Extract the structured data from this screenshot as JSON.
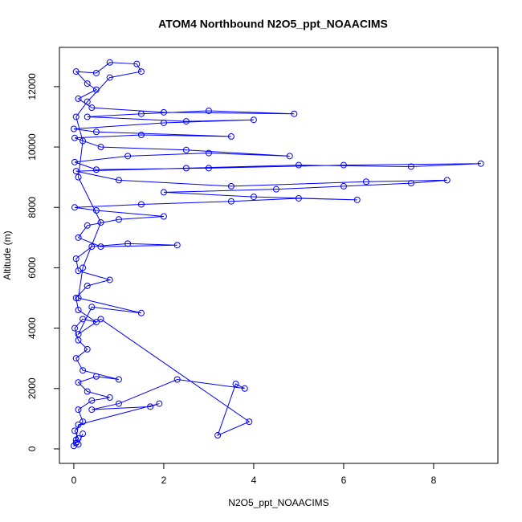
{
  "chart_data": {
    "type": "line",
    "markers": true,
    "title": "ATOM4 Northbound N2O5_ppt_NOAACIMS",
    "x_label": "N2O5_ppt_NOAACIMS",
    "y_label": "Altitude (m)",
    "color": "#0000ff",
    "xlim": [
      -0.32,
      9.43
    ],
    "ylim": [
      -480,
      13300
    ],
    "xticks": [
      0,
      2,
      4,
      6,
      8
    ],
    "yticks": [
      0,
      2000,
      4000,
      6000,
      8000,
      10000,
      12000
    ],
    "x": [
      0.05,
      0.1,
      0.02,
      0.2,
      0.1,
      0.4,
      0.8,
      0.3,
      0.1,
      0.5,
      1.0,
      0.2,
      0.05,
      0.3,
      0.1,
      0.02,
      0.2,
      0.5,
      0.1,
      0.05,
      0.3,
      0.8,
      0.1,
      0.05,
      0.4,
      1.2,
      2.3,
      0.6,
      0.1,
      0.3,
      1.0,
      2.0,
      0.5,
      0.02,
      1.5,
      3.5,
      5.0,
      6.3,
      4.0,
      2.0,
      4.5,
      6.0,
      7.5,
      8.3,
      6.5,
      3.5,
      1.0,
      0.05,
      2.5,
      5.0,
      7.5,
      9.05,
      6.0,
      3.0,
      0.5,
      0.02,
      1.2,
      3.0,
      4.8,
      2.5,
      0.6,
      0.02,
      1.5,
      3.5,
      0.5,
      0.0,
      2.0,
      4.0,
      2.5,
      0.3,
      1.5,
      3.0,
      4.9,
      2.0,
      0.4,
      0.1,
      0.5,
      0.3,
      0.05,
      0.5,
      0.8,
      1.4,
      1.5,
      0.8,
      0.3,
      0.05,
      0.2,
      0.1,
      0.6,
      0.2,
      0.1,
      1.5,
      0.4,
      0.1,
      0.6,
      3.9,
      3.2,
      3.6,
      3.8,
      2.3,
      1.0,
      0.4,
      1.7,
      1.9,
      0.1,
      0.05,
      0.0,
      0.1,
      0.2
    ],
    "values": [
      200,
      350,
      600,
      900,
      1300,
      1600,
      1700,
      1900,
      2200,
      2400,
      2300,
      2600,
      3000,
      3300,
      3600,
      4000,
      4300,
      4200,
      4600,
      5000,
      5400,
      5600,
      5900,
      6300,
      6700,
      6800,
      6750,
      6700,
      7000,
      7400,
      7600,
      7700,
      7900,
      8000,
      8100,
      8200,
      8300,
      8250,
      8350,
      8500,
      8600,
      8700,
      8800,
      8900,
      8850,
      8700,
      8900,
      9200,
      9300,
      9400,
      9350,
      9450,
      9400,
      9300,
      9250,
      9500,
      9700,
      9800,
      9700,
      9900,
      10000,
      10300,
      10400,
      10350,
      10500,
      10600,
      10800,
      10900,
      10850,
      11000,
      11100,
      11200,
      11100,
      11150,
      11300,
      11600,
      11900,
      12100,
      12500,
      12450,
      12800,
      12750,
      12500,
      12300,
      11500,
      11000,
      10200,
      9000,
      7500,
      6000,
      5000,
      4500,
      4700,
      3800,
      4300,
      900,
      450,
      2150,
      2000,
      2300,
      1500,
      1300,
      1400,
      1500,
      800,
      300,
      100,
      150,
      500
    ]
  }
}
